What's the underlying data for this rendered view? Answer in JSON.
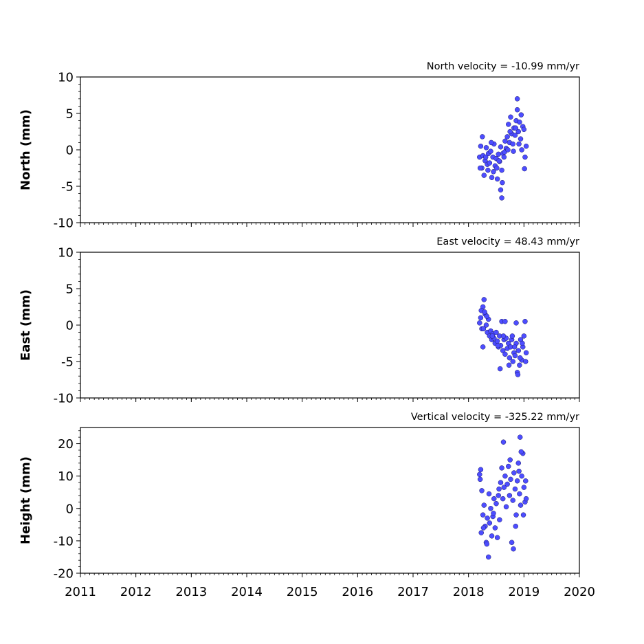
{
  "chart_data": [
    {
      "type": "scatter",
      "title": "North velocity = -10.99 mm/yr",
      "ylabel": "North (mm)",
      "xlim": [
        2011,
        2020
      ],
      "ylim": [
        -10,
        10
      ],
      "yticks": [
        10,
        5,
        0,
        -5,
        -10
      ],
      "xticks": [
        2011,
        2012,
        2013,
        2014,
        2015,
        2016,
        2017,
        2018,
        2019,
        2020
      ],
      "x_tick_labels_shown": false,
      "marker_color": "#4d4dff",
      "time_range": [
        2018.2,
        2019.05
      ],
      "series": [
        {
          "x": [
            2018.2,
            2018.22,
            2018.24,
            2018.26,
            2018.28,
            2018.3,
            2018.32,
            2018.34,
            2018.36,
            2018.38,
            2018.4,
            2018.42,
            2018.44,
            2018.46,
            2018.48,
            2018.5,
            2018.52,
            2018.54,
            2018.56,
            2018.58,
            2018.6,
            2018.62,
            2018.64,
            2018.66,
            2018.68,
            2018.7,
            2018.72,
            2018.74,
            2018.76,
            2018.78,
            2018.8,
            2018.82,
            2018.84,
            2018.86,
            2018.88,
            2018.9,
            2018.92,
            2018.94,
            2018.96,
            2018.98,
            2019.0,
            2019.02,
            2019.04,
            2018.25,
            2018.35,
            2018.45,
            2018.55,
            2018.65,
            2018.75,
            2018.85,
            2018.95,
            2018.58,
            2018.6,
            2018.88,
            2018.21,
            2018.31,
            2018.41,
            2018.51,
            2018.61,
            2018.71,
            2018.81,
            2018.91,
            2019.01
          ],
          "y": [
            -1.0,
            0.5,
            -2.5,
            -0.8,
            -3.5,
            -1.5,
            0.3,
            -2.0,
            -0.5,
            -1.8,
            -0.2,
            -3.8,
            -1.0,
            0.8,
            -2.2,
            -1.2,
            -4.0,
            -0.6,
            -1.6,
            0.4,
            -2.8,
            -0.5,
            -1.0,
            1.2,
            0.2,
            1.8,
            3.5,
            1.0,
            4.5,
            2.2,
            0.8,
            3.0,
            2.0,
            4.0,
            5.5,
            2.5,
            3.8,
            1.5,
            0.0,
            3.2,
            2.8,
            -1.0,
            0.5,
            1.8,
            -2.8,
            -3.0,
            -1.5,
            -0.3,
            2.5,
            3.0,
            4.8,
            -5.5,
            -6.6,
            7.0,
            -2.5,
            -1.0,
            1.0,
            -2.5,
            -4.5,
            0.0,
            -0.2,
            0.8,
            -2.6
          ]
        }
      ]
    },
    {
      "type": "scatter",
      "title": "East velocity = 48.43 mm/yr",
      "ylabel": "East (mm)",
      "xlim": [
        2011,
        2020
      ],
      "ylim": [
        -10,
        10
      ],
      "yticks": [
        10,
        5,
        0,
        -5,
        -10
      ],
      "xticks": [
        2011,
        2012,
        2013,
        2014,
        2015,
        2016,
        2017,
        2018,
        2019,
        2020
      ],
      "x_tick_labels_shown": false,
      "marker_color": "#4d4dff",
      "series": [
        {
          "x": [
            2018.2,
            2018.22,
            2018.24,
            2018.26,
            2018.28,
            2018.3,
            2018.32,
            2018.34,
            2018.36,
            2018.38,
            2018.4,
            2018.42,
            2018.44,
            2018.46,
            2018.48,
            2018.5,
            2018.52,
            2018.54,
            2018.56,
            2018.58,
            2018.6,
            2018.62,
            2018.64,
            2018.66,
            2018.68,
            2018.7,
            2018.72,
            2018.74,
            2018.76,
            2018.78,
            2018.8,
            2018.82,
            2018.84,
            2018.86,
            2018.88,
            2018.9,
            2018.92,
            2018.94,
            2018.96,
            2018.98,
            2019.0,
            2019.02,
            2019.04,
            2018.23,
            2018.27,
            2018.29,
            2018.33,
            2018.43,
            2018.53,
            2018.63,
            2018.73,
            2018.83,
            2018.93,
            2019.03,
            2018.57,
            2018.89,
            2018.26,
            2018.66,
            2018.79,
            2018.86,
            2018.97
          ],
          "y": [
            0.3,
            1.0,
            -0.5,
            2.5,
            3.5,
            1.5,
            0.0,
            -1.0,
            0.8,
            -1.5,
            -0.8,
            -2.0,
            -1.2,
            -1.8,
            -2.5,
            -1.0,
            -2.2,
            -3.0,
            -1.5,
            -2.8,
            0.5,
            -3.5,
            -2.0,
            -4.0,
            -1.8,
            -3.2,
            -2.5,
            -4.5,
            -3.0,
            -2.0,
            -5.0,
            -3.8,
            -4.2,
            -2.5,
            -6.5,
            -3.5,
            -5.5,
            -2.0,
            -4.8,
            -3.0,
            -1.5,
            0.5,
            -3.8,
            2.0,
            -0.5,
            1.8,
            1.2,
            -1.5,
            -2.8,
            -1.5,
            -5.5,
            -3.0,
            -4.5,
            -5.0,
            -6.0,
            -6.8,
            -3.0,
            0.5,
            -1.5,
            0.3,
            -2.5
          ]
        }
      ]
    },
    {
      "type": "scatter",
      "title": "Vertical velocity = -325.22 mm/yr",
      "ylabel": "Height (mm)",
      "xlim": [
        2011,
        2020
      ],
      "ylim": [
        -20,
        25
      ],
      "yticks": [
        20,
        10,
        0,
        -10,
        -20
      ],
      "xticks": [
        2011,
        2012,
        2013,
        2014,
        2015,
        2016,
        2017,
        2018,
        2019,
        2020
      ],
      "x_tick_labels_shown": true,
      "marker_color": "#4d4dff",
      "series": [
        {
          "x": [
            2018.2,
            2018.22,
            2018.24,
            2018.26,
            2018.28,
            2018.3,
            2018.32,
            2018.34,
            2018.36,
            2018.38,
            2018.4,
            2018.42,
            2018.44,
            2018.46,
            2018.48,
            2018.5,
            2018.52,
            2018.54,
            2018.56,
            2018.58,
            2018.6,
            2018.62,
            2018.64,
            2018.66,
            2018.68,
            2018.7,
            2018.72,
            2018.74,
            2018.76,
            2018.78,
            2018.8,
            2018.82,
            2018.84,
            2018.86,
            2018.88,
            2018.9,
            2018.92,
            2018.94,
            2018.96,
            2018.98,
            2019.0,
            2019.02,
            2019.04,
            2018.21,
            2018.23,
            2018.37,
            2018.63,
            2018.75,
            2018.81,
            2018.93,
            2018.95,
            2019.03,
            2018.27,
            2018.33,
            2018.45,
            2018.55,
            2018.85,
            2018.91,
            2018.99
          ],
          "y": [
            10.5,
            12.0,
            5.5,
            -2.0,
            1.0,
            -5.5,
            -10.5,
            -3.0,
            -15.0,
            -4.5,
            0.0,
            -8.5,
            -2.5,
            3.0,
            -6.0,
            1.5,
            -9.0,
            4.0,
            -3.5,
            8.0,
            12.5,
            3.0,
            6.5,
            10.0,
            0.5,
            7.5,
            13.0,
            4.0,
            9.0,
            -10.5,
            2.5,
            11.0,
            6.0,
            -2.0,
            8.5,
            14.0,
            4.5,
            1.0,
            10.0,
            17.0,
            6.5,
            2.0,
            3.0,
            9.0,
            -7.5,
            4.5,
            20.5,
            15.0,
            -12.5,
            22.0,
            17.5,
            8.5,
            -6.0,
            -11.0,
            -1.5,
            6.0,
            -5.5,
            11.5,
            -2.0
          ]
        }
      ]
    }
  ]
}
